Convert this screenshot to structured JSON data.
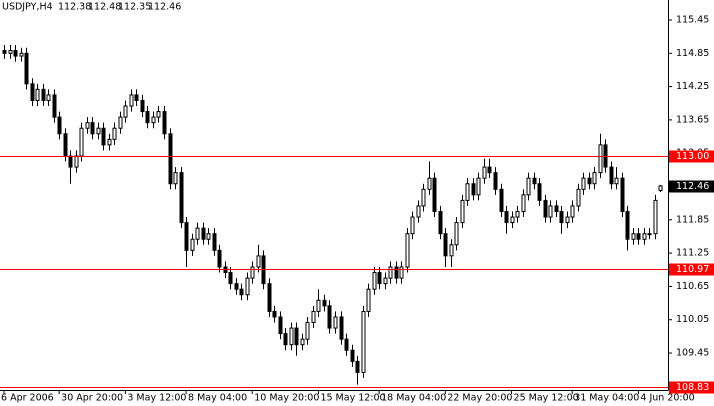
{
  "chart_data": {
    "type": "candlestick",
    "title": "USDJPY,H4",
    "color_up": "#ffffff",
    "color_down": "#000000",
    "outline": "#000000",
    "open": [
      114.9,
      114.85,
      114.9,
      114.8,
      114.85,
      114.3,
      114.0,
      114.2,
      114.0,
      114.1,
      113.7,
      113.4,
      113.0,
      112.8,
      113.0,
      113.5,
      113.6,
      113.4,
      113.5,
      113.2,
      113.3,
      113.5,
      113.7,
      113.9,
      114.1,
      114.0,
      113.8,
      113.6,
      113.7,
      113.8,
      113.4,
      112.5,
      112.7,
      111.8,
      111.3,
      111.5,
      111.7,
      111.5,
      111.6,
      111.3,
      111.0,
      110.9,
      110.7,
      110.6,
      110.5,
      110.8,
      111.0,
      111.2,
      110.7,
      110.2,
      110.1,
      109.8,
      109.6,
      109.9,
      109.6,
      109.7,
      110.0,
      110.2,
      110.4,
      110.3,
      109.9,
      110.1,
      109.7,
      109.5,
      109.3,
      109.1,
      110.2,
      110.6,
      110.9,
      110.7,
      110.8,
      111.0,
      110.8,
      111.0,
      111.6,
      111.9,
      112.1,
      112.4,
      112.6,
      112.0,
      111.6,
      111.2,
      111.4,
      111.8,
      112.2,
      112.5,
      112.3,
      112.6,
      112.8,
      112.7,
      112.4,
      112.0,
      111.8,
      111.9,
      112.0,
      112.3,
      112.6,
      112.5,
      112.2,
      111.9,
      112.1,
      112.0,
      111.8,
      111.9,
      112.1,
      112.4,
      112.6,
      112.5,
      112.7,
      113.2,
      112.8,
      112.5,
      112.6,
      112.0,
      111.5,
      111.6,
      111.5,
      111.6,
      111.6,
      112.38
    ],
    "high": [
      115.0,
      115.0,
      115.0,
      114.95,
      114.95,
      114.4,
      114.3,
      114.3,
      114.2,
      114.2,
      113.8,
      113.5,
      113.1,
      113.1,
      113.6,
      113.7,
      113.7,
      113.6,
      113.6,
      113.4,
      113.6,
      113.8,
      114.0,
      114.2,
      114.2,
      114.1,
      113.9,
      113.8,
      113.9,
      113.9,
      113.5,
      112.8,
      112.8,
      111.9,
      111.6,
      111.8,
      111.8,
      111.7,
      111.7,
      111.4,
      111.1,
      111.0,
      110.8,
      110.7,
      110.9,
      111.1,
      111.4,
      111.3,
      110.8,
      110.3,
      110.2,
      109.9,
      110.0,
      110.0,
      109.8,
      110.1,
      110.3,
      110.6,
      110.5,
      110.4,
      110.2,
      110.2,
      109.8,
      109.6,
      109.4,
      110.3,
      110.7,
      111.0,
      111.0,
      110.9,
      111.1,
      111.1,
      111.1,
      111.7,
      112.0,
      112.2,
      112.5,
      112.9,
      112.7,
      112.1,
      111.7,
      111.5,
      111.9,
      112.3,
      112.6,
      112.6,
      112.7,
      112.95,
      112.95,
      112.8,
      112.5,
      112.1,
      112.0,
      112.1,
      112.4,
      112.7,
      112.7,
      112.6,
      112.3,
      112.2,
      112.2,
      112.1,
      112.0,
      112.2,
      112.5,
      112.7,
      112.7,
      112.8,
      113.4,
      113.3,
      112.9,
      112.8,
      112.7,
      112.1,
      111.7,
      111.7,
      111.7,
      111.7,
      112.3,
      112.48
    ],
    "low": [
      114.75,
      114.75,
      114.7,
      114.7,
      114.2,
      113.9,
      113.9,
      113.9,
      113.9,
      113.6,
      113.3,
      112.9,
      112.5,
      112.7,
      112.9,
      113.4,
      113.3,
      113.3,
      113.1,
      113.1,
      113.2,
      113.4,
      113.6,
      113.8,
      113.9,
      113.7,
      113.5,
      113.5,
      113.6,
      113.3,
      112.4,
      112.4,
      111.7,
      111.0,
      111.2,
      111.4,
      111.4,
      111.4,
      111.2,
      110.9,
      110.8,
      110.6,
      110.5,
      110.4,
      110.4,
      110.7,
      110.9,
      110.6,
      110.1,
      110.0,
      109.7,
      109.5,
      109.5,
      109.4,
      109.5,
      109.6,
      109.9,
      110.1,
      110.2,
      109.8,
      109.8,
      109.6,
      109.4,
      109.2,
      108.88,
      109.0,
      110.1,
      110.5,
      110.6,
      110.6,
      110.7,
      110.7,
      110.7,
      110.9,
      111.5,
      111.8,
      112.0,
      112.3,
      111.9,
      111.5,
      111.0,
      111.0,
      111.3,
      111.7,
      112.1,
      112.2,
      112.2,
      112.5,
      112.6,
      112.3,
      111.9,
      111.6,
      111.7,
      111.8,
      111.9,
      112.2,
      112.4,
      112.1,
      111.8,
      111.8,
      111.9,
      111.6,
      111.7,
      111.8,
      112.0,
      112.3,
      112.4,
      112.4,
      112.6,
      112.7,
      112.4,
      112.4,
      111.9,
      111.3,
      111.4,
      111.4,
      111.4,
      111.5,
      111.5,
      112.35
    ],
    "close": [
      114.85,
      114.9,
      114.8,
      114.85,
      114.3,
      114.0,
      114.2,
      114.0,
      114.1,
      113.7,
      113.4,
      113.0,
      112.8,
      113.0,
      113.5,
      113.6,
      113.4,
      113.5,
      113.2,
      113.3,
      113.5,
      113.7,
      113.9,
      114.1,
      114.0,
      113.8,
      113.6,
      113.7,
      113.8,
      113.4,
      112.5,
      112.7,
      111.8,
      111.3,
      111.5,
      111.7,
      111.5,
      111.6,
      111.3,
      111.0,
      110.9,
      110.7,
      110.6,
      110.5,
      110.8,
      111.0,
      111.2,
      110.7,
      110.2,
      110.1,
      109.8,
      109.6,
      109.9,
      109.6,
      109.7,
      110.0,
      110.2,
      110.4,
      110.3,
      109.9,
      110.1,
      109.7,
      109.5,
      109.3,
      109.1,
      110.2,
      110.6,
      110.9,
      110.7,
      110.8,
      111.0,
      110.8,
      111.0,
      111.6,
      111.9,
      112.1,
      112.4,
      112.6,
      112.0,
      111.6,
      111.2,
      111.4,
      111.8,
      112.2,
      112.5,
      112.3,
      112.6,
      112.8,
      112.7,
      112.4,
      112.0,
      111.8,
      111.9,
      112.0,
      112.3,
      112.6,
      112.5,
      112.2,
      111.9,
      112.1,
      112.0,
      111.8,
      111.9,
      112.1,
      112.4,
      112.6,
      112.5,
      112.7,
      113.2,
      112.8,
      112.5,
      112.6,
      112.0,
      111.5,
      111.6,
      111.5,
      111.6,
      111.6,
      112.2,
      112.46
    ],
    "ylim": [
      108.73,
      115.81
    ],
    "yticks": [
      115.45,
      114.85,
      114.25,
      113.65,
      113.05,
      112.45,
      111.85,
      111.25,
      110.65,
      110.05,
      109.45,
      108.85
    ],
    "xticks": [
      {
        "value": 0,
        "label": "6 Apr 2006"
      },
      {
        "value": 10,
        "label": "30 Apr 20:00"
      },
      {
        "value": 22,
        "label": "3 May 12:00"
      },
      {
        "value": 33,
        "label": "8 May 04:00"
      },
      {
        "value": 45,
        "label": "10 May 20:00"
      },
      {
        "value": 57,
        "label": "15 May 12:00"
      },
      {
        "value": 68,
        "label": "18 May 04:00"
      },
      {
        "value": 80,
        "label": "22 May 20:00"
      },
      {
        "value": 92,
        "label": "25 May 12:00"
      },
      {
        "value": 103,
        "label": "31 May 04:00"
      },
      {
        "value": 115,
        "label": "4 Jun 20:00"
      }
    ],
    "hlines": [
      {
        "value": 113,
        "label": "113.00"
      },
      {
        "value": 110.97,
        "label": "110.97"
      },
      {
        "value": 108.83,
        "label": "108.83"
      }
    ],
    "hline_color": "#ff0000",
    "grid": false
  }
}
